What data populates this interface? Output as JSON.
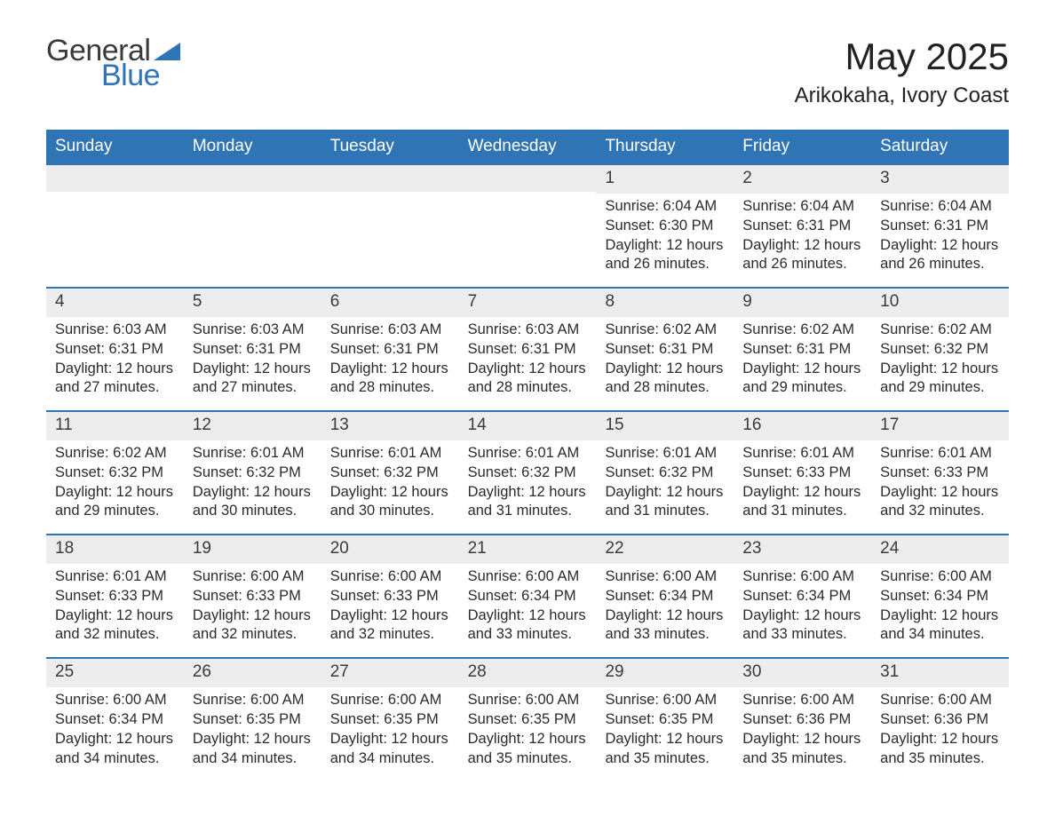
{
  "logo": {
    "text_general": "General",
    "text_blue": "Blue",
    "triangle_color": "#2f74b5"
  },
  "title": "May 2025",
  "location": "Arikokaha, Ivory Coast",
  "header_bg": "#2f74b5",
  "header_fg": "#ffffff",
  "daynum_bg": "#ededed",
  "week_border": "#2f74b5",
  "text_color": "#2b2b2b",
  "background": "#ffffff",
  "day_labels": [
    "Sunday",
    "Monday",
    "Tuesday",
    "Wednesday",
    "Thursday",
    "Friday",
    "Saturday"
  ],
  "sunrise_prefix": "Sunrise: ",
  "sunset_prefix": "Sunset: ",
  "daylight_prefix": "Daylight: ",
  "weeks": [
    [
      null,
      null,
      null,
      null,
      {
        "n": "1",
        "sunrise": "6:04 AM",
        "sunset": "6:30 PM",
        "daylight": "12 hours and 26 minutes."
      },
      {
        "n": "2",
        "sunrise": "6:04 AM",
        "sunset": "6:31 PM",
        "daylight": "12 hours and 26 minutes."
      },
      {
        "n": "3",
        "sunrise": "6:04 AM",
        "sunset": "6:31 PM",
        "daylight": "12 hours and 26 minutes."
      }
    ],
    [
      {
        "n": "4",
        "sunrise": "6:03 AM",
        "sunset": "6:31 PM",
        "daylight": "12 hours and 27 minutes."
      },
      {
        "n": "5",
        "sunrise": "6:03 AM",
        "sunset": "6:31 PM",
        "daylight": "12 hours and 27 minutes."
      },
      {
        "n": "6",
        "sunrise": "6:03 AM",
        "sunset": "6:31 PM",
        "daylight": "12 hours and 28 minutes."
      },
      {
        "n": "7",
        "sunrise": "6:03 AM",
        "sunset": "6:31 PM",
        "daylight": "12 hours and 28 minutes."
      },
      {
        "n": "8",
        "sunrise": "6:02 AM",
        "sunset": "6:31 PM",
        "daylight": "12 hours and 28 minutes."
      },
      {
        "n": "9",
        "sunrise": "6:02 AM",
        "sunset": "6:31 PM",
        "daylight": "12 hours and 29 minutes."
      },
      {
        "n": "10",
        "sunrise": "6:02 AM",
        "sunset": "6:32 PM",
        "daylight": "12 hours and 29 minutes."
      }
    ],
    [
      {
        "n": "11",
        "sunrise": "6:02 AM",
        "sunset": "6:32 PM",
        "daylight": "12 hours and 29 minutes."
      },
      {
        "n": "12",
        "sunrise": "6:01 AM",
        "sunset": "6:32 PM",
        "daylight": "12 hours and 30 minutes."
      },
      {
        "n": "13",
        "sunrise": "6:01 AM",
        "sunset": "6:32 PM",
        "daylight": "12 hours and 30 minutes."
      },
      {
        "n": "14",
        "sunrise": "6:01 AM",
        "sunset": "6:32 PM",
        "daylight": "12 hours and 31 minutes."
      },
      {
        "n": "15",
        "sunrise": "6:01 AM",
        "sunset": "6:32 PM",
        "daylight": "12 hours and 31 minutes."
      },
      {
        "n": "16",
        "sunrise": "6:01 AM",
        "sunset": "6:33 PM",
        "daylight": "12 hours and 31 minutes."
      },
      {
        "n": "17",
        "sunrise": "6:01 AM",
        "sunset": "6:33 PM",
        "daylight": "12 hours and 32 minutes."
      }
    ],
    [
      {
        "n": "18",
        "sunrise": "6:01 AM",
        "sunset": "6:33 PM",
        "daylight": "12 hours and 32 minutes."
      },
      {
        "n": "19",
        "sunrise": "6:00 AM",
        "sunset": "6:33 PM",
        "daylight": "12 hours and 32 minutes."
      },
      {
        "n": "20",
        "sunrise": "6:00 AM",
        "sunset": "6:33 PM",
        "daylight": "12 hours and 32 minutes."
      },
      {
        "n": "21",
        "sunrise": "6:00 AM",
        "sunset": "6:34 PM",
        "daylight": "12 hours and 33 minutes."
      },
      {
        "n": "22",
        "sunrise": "6:00 AM",
        "sunset": "6:34 PM",
        "daylight": "12 hours and 33 minutes."
      },
      {
        "n": "23",
        "sunrise": "6:00 AM",
        "sunset": "6:34 PM",
        "daylight": "12 hours and 33 minutes."
      },
      {
        "n": "24",
        "sunrise": "6:00 AM",
        "sunset": "6:34 PM",
        "daylight": "12 hours and 34 minutes."
      }
    ],
    [
      {
        "n": "25",
        "sunrise": "6:00 AM",
        "sunset": "6:34 PM",
        "daylight": "12 hours and 34 minutes."
      },
      {
        "n": "26",
        "sunrise": "6:00 AM",
        "sunset": "6:35 PM",
        "daylight": "12 hours and 34 minutes."
      },
      {
        "n": "27",
        "sunrise": "6:00 AM",
        "sunset": "6:35 PM",
        "daylight": "12 hours and 34 minutes."
      },
      {
        "n": "28",
        "sunrise": "6:00 AM",
        "sunset": "6:35 PM",
        "daylight": "12 hours and 35 minutes."
      },
      {
        "n": "29",
        "sunrise": "6:00 AM",
        "sunset": "6:35 PM",
        "daylight": "12 hours and 35 minutes."
      },
      {
        "n": "30",
        "sunrise": "6:00 AM",
        "sunset": "6:36 PM",
        "daylight": "12 hours and 35 minutes."
      },
      {
        "n": "31",
        "sunrise": "6:00 AM",
        "sunset": "6:36 PM",
        "daylight": "12 hours and 35 minutes."
      }
    ]
  ]
}
